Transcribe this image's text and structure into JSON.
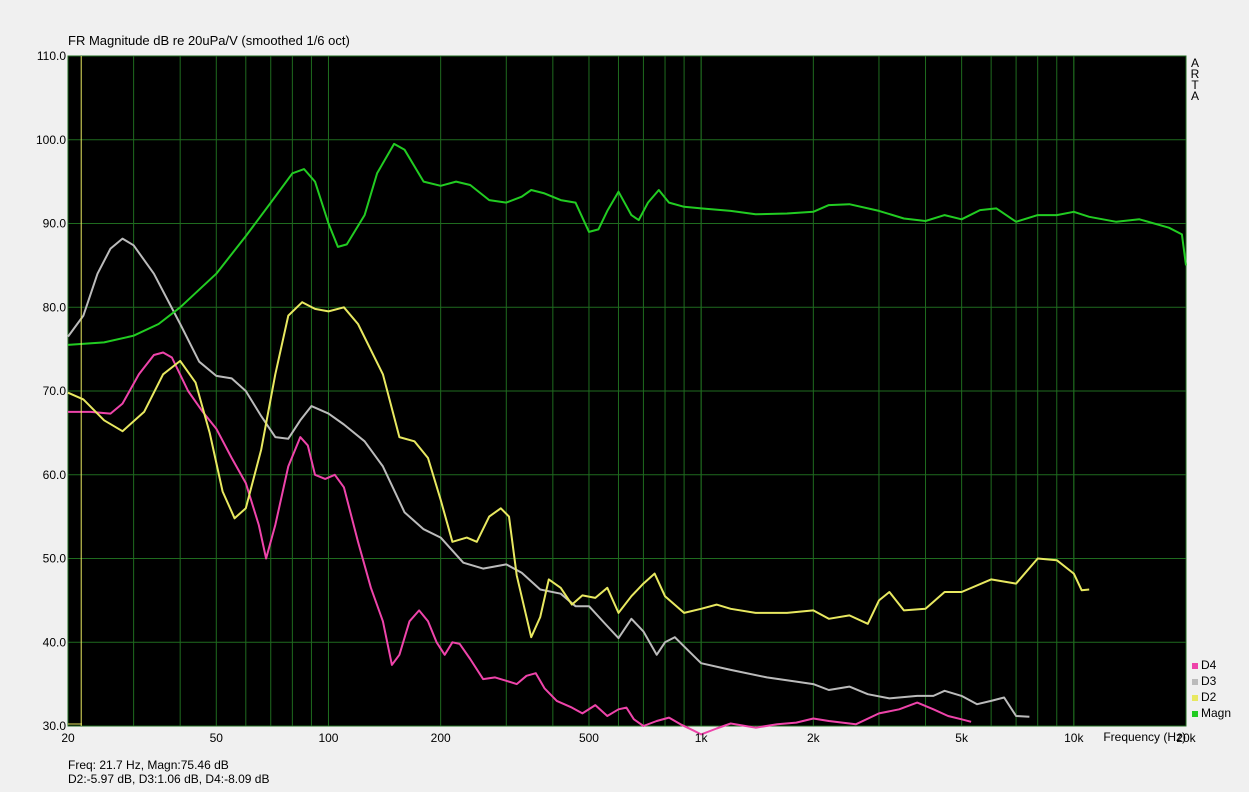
{
  "chart_data": {
    "type": "line",
    "title": "FR Magnitude dB re 20uPa/V (smoothed 1/6 oct)",
    "xlabel": "Frequency (Hz)",
    "ylabel": "",
    "x_scale": "log",
    "xlim": [
      20,
      20000
    ],
    "ylim": [
      30,
      110
    ],
    "grid": true,
    "legend_placement": "bottom-right",
    "plot_background": "#000000",
    "grid_color": "#1f6b1f",
    "x_ticks": [
      20,
      50,
      100,
      200,
      500,
      1000,
      2000,
      5000,
      10000,
      20000
    ],
    "x_tick_labels": [
      "20",
      "50",
      "100",
      "200",
      "500",
      "1k",
      "2k",
      "5k",
      "10k",
      "20k"
    ],
    "y_ticks": [
      30,
      40,
      50,
      60,
      70,
      80,
      90,
      100,
      110
    ],
    "y_tick_labels": [
      "30.0",
      "40.0",
      "50.0",
      "60.0",
      "70.0",
      "80.0",
      "90.0",
      "100.0",
      "110.0"
    ],
    "side_label": [
      "A",
      "R",
      "T",
      "A"
    ],
    "series": [
      {
        "name": "Magn",
        "color": "#22cc22",
        "points": [
          [
            20,
            75.5
          ],
          [
            25,
            75.8
          ],
          [
            30,
            76.6
          ],
          [
            35,
            78
          ],
          [
            40,
            80
          ],
          [
            50,
            84
          ],
          [
            60,
            88.5
          ],
          [
            70,
            92.5
          ],
          [
            80,
            96
          ],
          [
            86,
            96.5
          ],
          [
            92,
            95
          ],
          [
            100,
            90
          ],
          [
            106,
            87.2
          ],
          [
            112,
            87.5
          ],
          [
            125,
            91
          ],
          [
            135,
            96
          ],
          [
            150,
            99.5
          ],
          [
            160,
            98.8
          ],
          [
            180,
            95
          ],
          [
            200,
            94.5
          ],
          [
            220,
            95
          ],
          [
            240,
            94.6
          ],
          [
            270,
            92.8
          ],
          [
            300,
            92.5
          ],
          [
            330,
            93.2
          ],
          [
            350,
            94
          ],
          [
            380,
            93.6
          ],
          [
            420,
            92.8
          ],
          [
            460,
            92.5
          ],
          [
            500,
            89
          ],
          [
            530,
            89.3
          ],
          [
            560,
            91.5
          ],
          [
            600,
            93.8
          ],
          [
            650,
            91
          ],
          [
            680,
            90.4
          ],
          [
            720,
            92.5
          ],
          [
            770,
            94
          ],
          [
            820,
            92.5
          ],
          [
            900,
            92
          ],
          [
            1000,
            91.8
          ],
          [
            1200,
            91.5
          ],
          [
            1400,
            91.1
          ],
          [
            1700,
            91.2
          ],
          [
            2000,
            91.4
          ],
          [
            2200,
            92.2
          ],
          [
            2500,
            92.3
          ],
          [
            3000,
            91.5
          ],
          [
            3500,
            90.6
          ],
          [
            4000,
            90.3
          ],
          [
            4500,
            91
          ],
          [
            5000,
            90.5
          ],
          [
            5600,
            91.6
          ],
          [
            6200,
            91.8
          ],
          [
            7000,
            90.2
          ],
          [
            8000,
            91
          ],
          [
            9000,
            91
          ],
          [
            10000,
            91.4
          ],
          [
            11000,
            90.8
          ],
          [
            13000,
            90.2
          ],
          [
            15000,
            90.5
          ],
          [
            18000,
            89.5
          ],
          [
            19500,
            88.7
          ],
          [
            20000,
            85
          ]
        ]
      },
      {
        "name": "D2",
        "color": "#e8e860",
        "points": [
          [
            20,
            69.8
          ],
          [
            22,
            69
          ],
          [
            25,
            66.5
          ],
          [
            28,
            65.2
          ],
          [
            32,
            67.5
          ],
          [
            36,
            72
          ],
          [
            40,
            73.6
          ],
          [
            44,
            71
          ],
          [
            48,
            65
          ],
          [
            52,
            58
          ],
          [
            56,
            54.8
          ],
          [
            60,
            56
          ],
          [
            66,
            63
          ],
          [
            72,
            72
          ],
          [
            78,
            79
          ],
          [
            85,
            80.6
          ],
          [
            92,
            79.8
          ],
          [
            100,
            79.5
          ],
          [
            110,
            80
          ],
          [
            120,
            78
          ],
          [
            140,
            72
          ],
          [
            155,
            64.5
          ],
          [
            170,
            64
          ],
          [
            185,
            62
          ],
          [
            200,
            57
          ],
          [
            215,
            52
          ],
          [
            235,
            52.5
          ],
          [
            250,
            52
          ],
          [
            270,
            55
          ],
          [
            290,
            56
          ],
          [
            305,
            55
          ],
          [
            320,
            48
          ],
          [
            340,
            43
          ],
          [
            350,
            40.6
          ],
          [
            370,
            43
          ],
          [
            390,
            47.5
          ],
          [
            420,
            46.5
          ],
          [
            450,
            44.5
          ],
          [
            480,
            45.6
          ],
          [
            520,
            45.3
          ],
          [
            560,
            46.5
          ],
          [
            600,
            43.5
          ],
          [
            650,
            45.5
          ],
          [
            700,
            47
          ],
          [
            750,
            48.2
          ],
          [
            800,
            45.5
          ],
          [
            900,
            43.5
          ],
          [
            1000,
            44
          ],
          [
            1100,
            44.5
          ],
          [
            1200,
            44
          ],
          [
            1400,
            43.5
          ],
          [
            1700,
            43.5
          ],
          [
            2000,
            43.8
          ],
          [
            2200,
            42.8
          ],
          [
            2500,
            43.2
          ],
          [
            2800,
            42.2
          ],
          [
            3000,
            45
          ],
          [
            3200,
            46
          ],
          [
            3500,
            43.8
          ],
          [
            4000,
            44
          ],
          [
            4500,
            46
          ],
          [
            5000,
            46
          ],
          [
            6000,
            47.5
          ],
          [
            7000,
            47
          ],
          [
            8000,
            50
          ],
          [
            9000,
            49.8
          ],
          [
            10000,
            48.2
          ],
          [
            10500,
            46.2
          ],
          [
            11000,
            46.3
          ]
        ]
      },
      {
        "name": "D3",
        "color": "#bbbbbb",
        "points": [
          [
            20,
            76.5
          ],
          [
            22,
            79
          ],
          [
            24,
            84
          ],
          [
            26,
            87
          ],
          [
            28,
            88.2
          ],
          [
            30,
            87.4
          ],
          [
            34,
            84
          ],
          [
            40,
            78
          ],
          [
            45,
            73.5
          ],
          [
            50,
            71.8
          ],
          [
            55,
            71.5
          ],
          [
            60,
            70
          ],
          [
            66,
            67
          ],
          [
            72,
            64.5
          ],
          [
            78,
            64.3
          ],
          [
            84,
            66.5
          ],
          [
            90,
            68.2
          ],
          [
            100,
            67.3
          ],
          [
            110,
            66
          ],
          [
            125,
            64
          ],
          [
            140,
            61
          ],
          [
            160,
            55.5
          ],
          [
            180,
            53.5
          ],
          [
            200,
            52.5
          ],
          [
            230,
            49.5
          ],
          [
            260,
            48.8
          ],
          [
            300,
            49.3
          ],
          [
            330,
            48.3
          ],
          [
            370,
            46.3
          ],
          [
            420,
            45.8
          ],
          [
            460,
            44.3
          ],
          [
            500,
            44.3
          ],
          [
            550,
            42.3
          ],
          [
            600,
            40.5
          ],
          [
            650,
            42.8
          ],
          [
            700,
            41.3
          ],
          [
            760,
            38.5
          ],
          [
            800,
            40
          ],
          [
            850,
            40.6
          ],
          [
            900,
            39.5
          ],
          [
            1000,
            37.5
          ],
          [
            1200,
            36.7
          ],
          [
            1500,
            35.8
          ],
          [
            1800,
            35.3
          ],
          [
            2000,
            35
          ],
          [
            2200,
            34.3
          ],
          [
            2500,
            34.7
          ],
          [
            2800,
            33.8
          ],
          [
            3200,
            33.3
          ],
          [
            3800,
            33.6
          ],
          [
            4200,
            33.6
          ],
          [
            4500,
            34.2
          ],
          [
            5000,
            33.6
          ],
          [
            5500,
            32.6
          ],
          [
            6000,
            33
          ],
          [
            6500,
            33.4
          ],
          [
            7000,
            31.2
          ],
          [
            7600,
            31.1
          ]
        ]
      },
      {
        "name": "D4",
        "color": "#ee44aa",
        "points": [
          [
            20,
            67.5
          ],
          [
            23,
            67.5
          ],
          [
            26,
            67.3
          ],
          [
            28,
            68.5
          ],
          [
            31,
            72
          ],
          [
            34,
            74.3
          ],
          [
            36,
            74.6
          ],
          [
            38,
            74
          ],
          [
            42,
            70
          ],
          [
            46,
            67.5
          ],
          [
            50,
            65.5
          ],
          [
            55,
            62
          ],
          [
            60,
            59
          ],
          [
            65,
            54
          ],
          [
            68,
            50
          ],
          [
            72,
            54
          ],
          [
            78,
            61
          ],
          [
            84,
            64.5
          ],
          [
            88,
            63.5
          ],
          [
            92,
            60
          ],
          [
            98,
            59.5
          ],
          [
            104,
            60
          ],
          [
            110,
            58.5
          ],
          [
            120,
            52
          ],
          [
            130,
            46.5
          ],
          [
            140,
            42.5
          ],
          [
            148,
            37.3
          ],
          [
            155,
            38.5
          ],
          [
            165,
            42.5
          ],
          [
            175,
            43.8
          ],
          [
            185,
            42.5
          ],
          [
            195,
            40
          ],
          [
            205,
            38.5
          ],
          [
            215,
            40
          ],
          [
            225,
            39.8
          ],
          [
            240,
            38
          ],
          [
            260,
            35.6
          ],
          [
            280,
            35.8
          ],
          [
            300,
            35.4
          ],
          [
            320,
            35
          ],
          [
            340,
            36
          ],
          [
            360,
            36.3
          ],
          [
            380,
            34.5
          ],
          [
            410,
            33
          ],
          [
            450,
            32.2
          ],
          [
            480,
            31.5
          ],
          [
            520,
            32.5
          ],
          [
            560,
            31.2
          ],
          [
            600,
            32
          ],
          [
            630,
            32.2
          ],
          [
            660,
            30.8
          ],
          [
            700,
            30
          ],
          [
            760,
            30.6
          ],
          [
            820,
            31
          ],
          [
            880,
            30.2
          ],
          [
            950,
            29.5
          ],
          [
            1000,
            29
          ],
          [
            1100,
            29.7
          ],
          [
            1200,
            30.3
          ],
          [
            1400,
            29.8
          ],
          [
            1600,
            30.2
          ],
          [
            1800,
            30.4
          ],
          [
            2000,
            30.9
          ],
          [
            2200,
            30.6
          ],
          [
            2600,
            30.2
          ],
          [
            3000,
            31.5
          ],
          [
            3400,
            32
          ],
          [
            3800,
            32.8
          ],
          [
            4200,
            32
          ],
          [
            4600,
            31.2
          ],
          [
            5000,
            30.8
          ],
          [
            5300,
            30.5
          ]
        ]
      }
    ]
  },
  "status": {
    "line1": "Freq: 21.7 Hz, Magn:75.46 dB",
    "line2": "D2:-5.97 dB, D3:1.06 dB, D4:-8.09 dB"
  }
}
